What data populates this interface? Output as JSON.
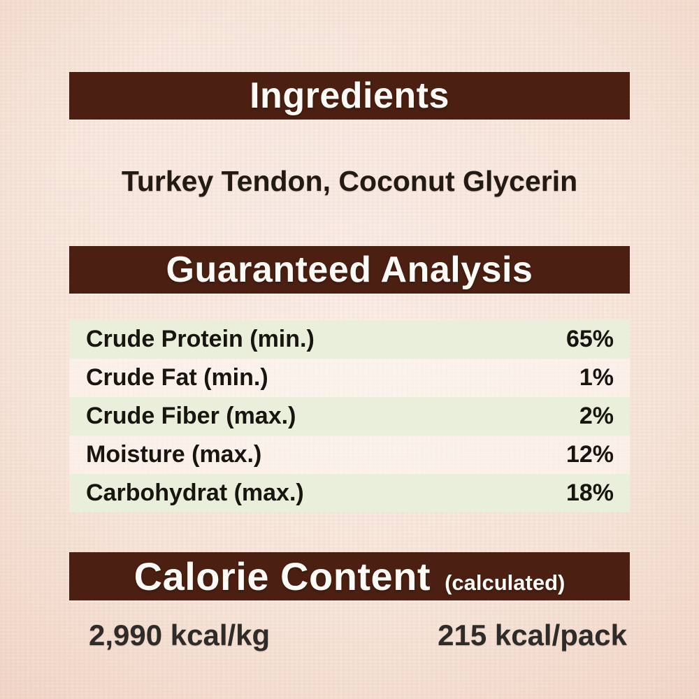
{
  "theme": {
    "bar_color": "#4b2012",
    "bar_text_color": "#fdfbf7",
    "stripe_color": "#e9efda",
    "paper_center": "#faeee7",
    "paper_edge": "#e8c3b1",
    "body_text_color": "#18140f"
  },
  "ingredients": {
    "title": "Ingredients",
    "content": "Turkey Tendon, Coconut Glycerin"
  },
  "guaranteed_analysis": {
    "title": "Guaranteed Analysis",
    "rows": [
      {
        "label": "Crude Protein (min.)",
        "value": "65%"
      },
      {
        "label": "Crude Fat (min.)",
        "value": "1%"
      },
      {
        "label": "Crude Fiber (max.)",
        "value": "2%"
      },
      {
        "label": "Moisture (max.)",
        "value": "12%"
      },
      {
        "label": "Carbohydrat (max.)",
        "value": "18%"
      }
    ]
  },
  "calorie_content": {
    "title": "Calorie Content",
    "qualifier": "(calculated)",
    "per_kg": "2,990 kcal/kg",
    "per_pack": "215 kcal/pack"
  }
}
